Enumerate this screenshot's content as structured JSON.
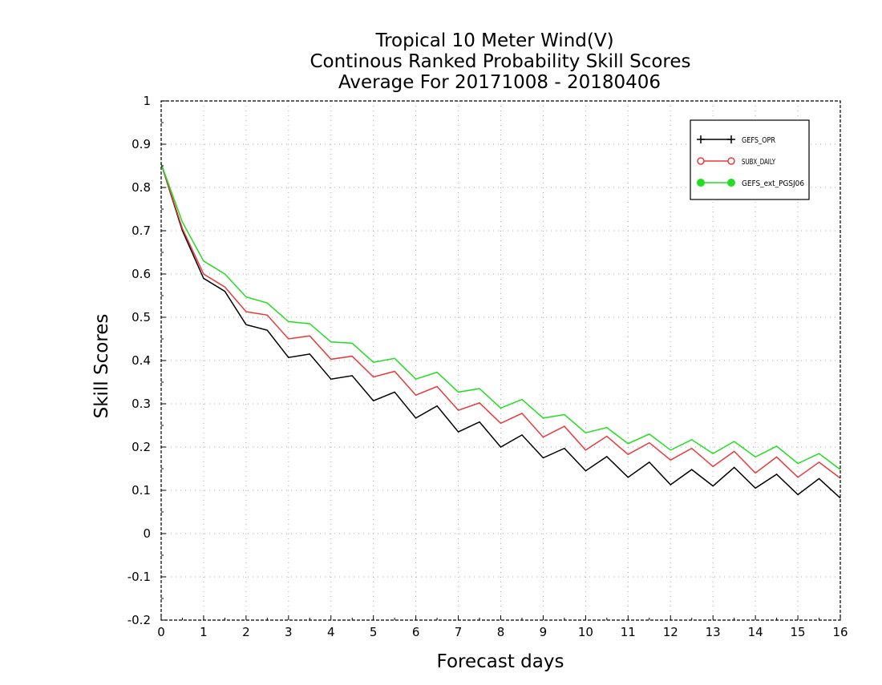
{
  "chart_data": {
    "type": "line",
    "title": [
      "Tropical 10 Meter Wind(V)",
      "Continous Ranked Probability Skill Scores",
      "Average For 20171008 - 20180406"
    ],
    "xlabel": "Forecast days",
    "ylabel": "Skill Scores",
    "xlim": [
      0,
      16
    ],
    "ylim": [
      -0.2,
      1
    ],
    "xticks": [
      0,
      1,
      2,
      3,
      4,
      5,
      6,
      7,
      8,
      9,
      10,
      11,
      12,
      13,
      14,
      15,
      16
    ],
    "yticks": [
      -0.2,
      -0.1,
      0,
      0.1,
      0.2,
      0.3,
      0.4,
      0.5,
      0.6,
      0.7,
      0.8,
      0.9,
      1
    ],
    "grid": true,
    "legend_position": "top-right",
    "x": [
      0,
      0.5,
      1,
      1.5,
      2,
      2.5,
      3,
      3.5,
      4,
      4.5,
      5,
      5.5,
      6,
      6.5,
      7,
      7.5,
      8,
      8.5,
      9,
      9.5,
      10,
      10.5,
      11,
      11.5,
      12,
      12.5,
      13,
      13.5,
      14,
      14.5,
      15,
      15.5,
      16
    ],
    "series": [
      {
        "name": "GEFS_OPR",
        "color": "#000000",
        "marker": "plus",
        "values": [
          0.855,
          0.7,
          0.59,
          0.56,
          0.483,
          0.47,
          0.407,
          0.415,
          0.357,
          0.365,
          0.307,
          0.327,
          0.267,
          0.295,
          0.235,
          0.258,
          0.2,
          0.228,
          0.175,
          0.197,
          0.145,
          0.178,
          0.13,
          0.165,
          0.113,
          0.148,
          0.11,
          0.153,
          0.105,
          0.137,
          0.09,
          0.127,
          0.082
        ]
      },
      {
        "name": "SUBX_DAILY",
        "color": "#e83a3a",
        "marker": "open-circle",
        "values": [
          0.855,
          0.705,
          0.6,
          0.57,
          0.513,
          0.505,
          0.45,
          0.457,
          0.403,
          0.41,
          0.362,
          0.375,
          0.32,
          0.34,
          0.285,
          0.302,
          0.255,
          0.278,
          0.223,
          0.248,
          0.193,
          0.225,
          0.183,
          0.21,
          0.17,
          0.197,
          0.155,
          0.19,
          0.14,
          0.177,
          0.13,
          0.165,
          0.128
        ]
      },
      {
        "name": "GEFS_ext_PGSJ06",
        "color": "#22dd22",
        "marker": "filled-circle",
        "values": [
          0.855,
          0.72,
          0.63,
          0.6,
          0.547,
          0.533,
          0.49,
          0.485,
          0.443,
          0.44,
          0.396,
          0.405,
          0.357,
          0.373,
          0.327,
          0.335,
          0.29,
          0.31,
          0.267,
          0.275,
          0.233,
          0.245,
          0.208,
          0.23,
          0.193,
          0.217,
          0.185,
          0.213,
          0.177,
          0.202,
          0.162,
          0.185,
          0.148
        ]
      }
    ]
  }
}
